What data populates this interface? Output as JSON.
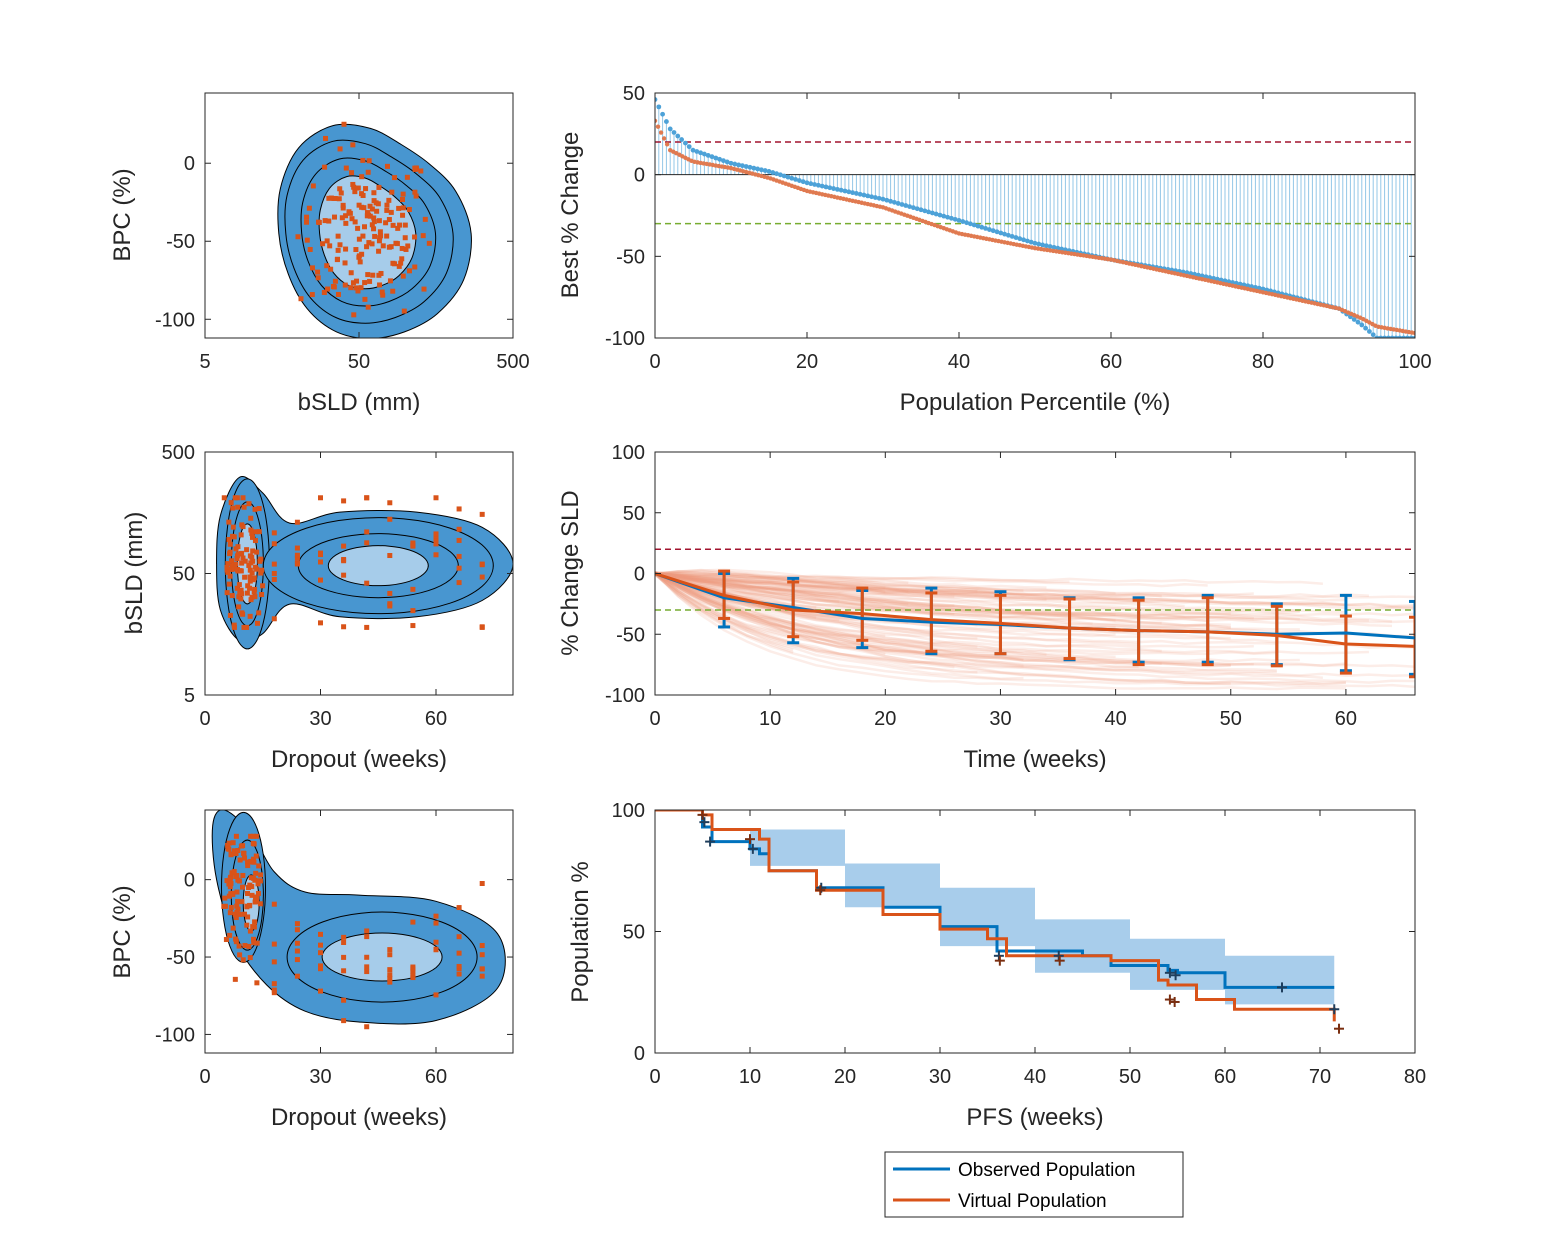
{
  "colors": {
    "observed": "#0072BD",
    "virtual": "#D95319",
    "observed_light": "#4DA2D8",
    "density_fill": "#4896D0",
    "density_inner": "#A6CCEA",
    "band": "#A8CDEB",
    "ref_red": "#A2142F",
    "ref_green": "#77AC30"
  },
  "legend": {
    "items": [
      {
        "label": "Observed Population"
      },
      {
        "label": "Virtual Population"
      }
    ]
  },
  "panels": {
    "p1": {
      "xlabel": "bSLD (mm)",
      "ylabel": "BPC (%)",
      "xticks": [
        "5",
        "50",
        "500"
      ],
      "yticks": [
        "0",
        "-50",
        "-100"
      ]
    },
    "p2": {
      "xlabel": "Population Percentile (%)",
      "ylabel": "Best % Change",
      "xticks": [
        "0",
        "20",
        "40",
        "60",
        "80",
        "100"
      ],
      "yticks": [
        "50",
        "0",
        "-50",
        "-100"
      ]
    },
    "p3": {
      "xlabel": "Dropout (weeks)",
      "ylabel": "bSLD (mm)",
      "xticks": [
        "0",
        "30",
        "60"
      ],
      "yticks": [
        "500",
        "50",
        "5"
      ]
    },
    "p4": {
      "xlabel": "Time (weeks)",
      "ylabel": "% Change SLD",
      "xticks": [
        "0",
        "10",
        "20",
        "30",
        "40",
        "50",
        "60"
      ],
      "yticks": [
        "100",
        "50",
        "0",
        "-50",
        "-100"
      ]
    },
    "p5": {
      "xlabel": "Dropout (weeks)",
      "ylabel": "BPC (%)",
      "xticks": [
        "0",
        "30",
        "60"
      ],
      "yticks": [
        "0",
        "-50",
        "-100"
      ]
    },
    "p6": {
      "xlabel": "PFS (weeks)",
      "ylabel": "Population %",
      "xticks": [
        "0",
        "10",
        "20",
        "30",
        "40",
        "50",
        "60",
        "70",
        "80"
      ],
      "yticks": [
        "100",
        "50",
        "0"
      ]
    }
  },
  "chart_data": [
    {
      "type": "scatter",
      "id": "p1",
      "xlabel": "bSLD (mm)",
      "ylabel": "BPC (%)",
      "xscale": "log",
      "xlim": [
        5,
        500
      ],
      "ylim": [
        -112,
        45
      ],
      "overlay": "2D kernel density contours (observed)",
      "series": [
        {
          "name": "Virtual Population",
          "marker": "square"
        }
      ],
      "point_cloud": {
        "x_center": 55,
        "y_center": -45,
        "x_range": [
          20,
          160
        ],
        "y_range": [
          -98,
          32
        ],
        "approx_count": 180
      }
    },
    {
      "type": "scatter",
      "id": "p2",
      "xlabel": "Population Percentile (%)",
      "ylabel": "Best % Change",
      "xlim": [
        0,
        100
      ],
      "ylim": [
        -100,
        50
      ],
      "reference_lines": [
        20,
        -30
      ],
      "x": [
        0,
        2,
        5,
        10,
        15,
        20,
        30,
        40,
        50,
        60,
        70,
        80,
        90,
        93,
        95,
        100
      ],
      "series": [
        {
          "name": "Observed Population",
          "style": "stem",
          "values": [
            46,
            28,
            15,
            7,
            2,
            -5,
            -15,
            -28,
            -42,
            -52,
            -60,
            -70,
            -82,
            -92,
            -100,
            -100
          ]
        },
        {
          "name": "Virtual Population",
          "style": "markers",
          "values": [
            33,
            15,
            8,
            4,
            -2,
            -10,
            -20,
            -36,
            -45,
            -52,
            -62,
            -72,
            -82,
            -88,
            -93,
            -97
          ]
        }
      ]
    },
    {
      "type": "scatter",
      "id": "p3",
      "xlabel": "Dropout (weeks)",
      "ylabel": "bSLD (mm)",
      "xlim": [
        0,
        80
      ],
      "ylim": [
        5,
        500
      ],
      "yscale": "log",
      "overlay": "2D kernel density contours (observed)",
      "series": [
        {
          "name": "Virtual Population",
          "marker": "square"
        }
      ],
      "point_cloud": {
        "x_range": [
          5,
          72
        ],
        "y_range": [
          18,
          210
        ],
        "clusters": [
          {
            "x": 10,
            "y": 60
          },
          {
            "x": 45,
            "y": 60
          }
        ],
        "approx_count": 180
      }
    },
    {
      "type": "line",
      "id": "p4",
      "xlabel": "Time (weeks)",
      "ylabel": "% Change SLD",
      "xlim": [
        0,
        66
      ],
      "ylim": [
        -100,
        100
      ],
      "reference_lines": [
        20,
        -30
      ],
      "x": [
        0,
        6,
        12,
        18,
        24,
        30,
        36,
        42,
        48,
        54,
        60,
        66
      ],
      "series": [
        {
          "name": "Observed Population",
          "values": [
            0,
            -20,
            -28,
            -37,
            -40,
            -42,
            -45,
            -47,
            -48,
            -50,
            -49,
            -53
          ],
          "lower": [
            null,
            -44,
            -57,
            -61,
            -66,
            -66,
            -71,
            -73,
            -73,
            -75,
            -80,
            -83
          ],
          "upper": [
            null,
            0,
            -4,
            -14,
            -12,
            -15,
            -20,
            -20,
            -18,
            -25,
            -18,
            -23
          ]
        },
        {
          "name": "Virtual Population",
          "values": [
            0,
            -18,
            -30,
            -33,
            -38,
            -41,
            -45,
            -47,
            -48,
            -51,
            -58,
            -60
          ],
          "lower": [
            null,
            -37,
            -52,
            -55,
            -64,
            -66,
            -70,
            -75,
            -75,
            -76,
            -82,
            -85
          ],
          "upper": [
            null,
            2,
            -7,
            -12,
            -16,
            -18,
            -21,
            -22,
            -20,
            -27,
            -35,
            -36
          ]
        }
      ],
      "trajectories": "faint virtual-patient trajectories"
    },
    {
      "type": "scatter",
      "id": "p5",
      "xlabel": "Dropout (weeks)",
      "ylabel": "BPC (%)",
      "xlim": [
        0,
        80
      ],
      "ylim": [
        -112,
        45
      ],
      "overlay": "2D kernel density contours (observed)",
      "series": [
        {
          "name": "Virtual Population",
          "marker": "square"
        }
      ],
      "point_cloud": {
        "x_range": [
          5,
          72
        ],
        "y_range": [
          -98,
          28
        ],
        "clusters": [
          {
            "x": 11,
            "y": -10
          },
          {
            "x": 45,
            "y": -52
          }
        ],
        "approx_count": 180
      }
    },
    {
      "type": "line",
      "id": "p6",
      "xlabel": "PFS (weeks)",
      "ylabel": "Population %",
      "xlim": [
        0,
        80
      ],
      "ylim": [
        0,
        100
      ],
      "step": true,
      "series": [
        {
          "name": "Observed Population",
          "x": [
            0,
            5,
            6,
            10,
            11,
            12,
            17,
            24,
            30,
            36,
            45,
            48,
            54,
            55,
            60,
            71.5
          ],
          "values": [
            100,
            93,
            87,
            84,
            82,
            75,
            68,
            60,
            52,
            42,
            40,
            36,
            34,
            33,
            27,
            27
          ],
          "censored": [
            [
              5.2,
              95
            ],
            [
              5.8,
              87
            ],
            [
              10.3,
              84
            ],
            [
              17.5,
              68
            ],
            [
              36.2,
              40
            ],
            [
              42.5,
              40
            ],
            [
              54.2,
              33
            ],
            [
              54.8,
              32
            ],
            [
              66,
              27
            ],
            [
              71.5,
              18
            ]
          ]
        },
        {
          "name": "Virtual Population",
          "x": [
            0,
            5,
            6,
            11,
            12,
            17,
            24,
            30,
            35,
            37,
            48,
            53,
            54,
            57,
            61,
            71.5
          ],
          "values": [
            100,
            98,
            92,
            88,
            75,
            67,
            57,
            51,
            47,
            40,
            38,
            30,
            28,
            22,
            18,
            13
          ],
          "censored": [
            [
              5,
              98
            ],
            [
              10,
              88
            ],
            [
              17.4,
              67
            ],
            [
              36.3,
              38
            ],
            [
              42.6,
              38
            ],
            [
              54.2,
              22
            ],
            [
              54.7,
              21
            ],
            [
              72,
              10
            ]
          ]
        },
        {
          "name": "confidence band",
          "x": [
            0,
            10,
            20,
            30,
            40,
            50,
            60,
            71.5
          ],
          "lower": [
            100,
            77,
            60,
            44,
            33,
            26,
            20,
            18
          ],
          "upper": [
            100,
            92,
            78,
            68,
            55,
            47,
            40,
            36
          ]
        }
      ]
    }
  ]
}
